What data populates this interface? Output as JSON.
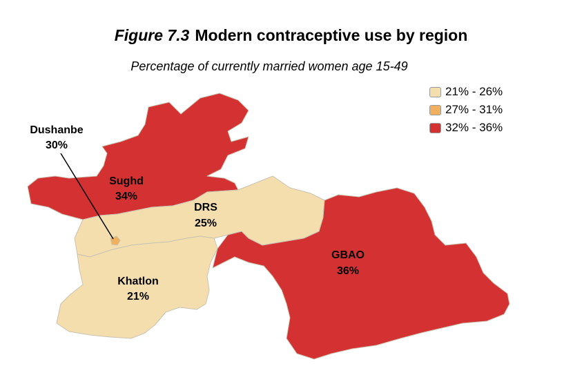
{
  "header": {
    "figure_number": "Figure 7.3",
    "title": "Modern contraceptive use by region",
    "subtitle": "Percentage of currently married women age 15-49"
  },
  "colors": {
    "low": "#f5deae",
    "mid": "#f0b060",
    "high": "#d43232"
  },
  "legend": [
    {
      "label": "21% - 26%",
      "color": "#f5deae"
    },
    {
      "label": "27% - 31%",
      "color": "#f0b060"
    },
    {
      "label": "32% - 36%",
      "color": "#d43232"
    }
  ],
  "regions": {
    "sughd": {
      "name": "Sughd",
      "value": "34%",
      "color": "#d43232"
    },
    "drs": {
      "name": "DRS",
      "value": "25%",
      "color": "#f5deae"
    },
    "khatlon": {
      "name": "Khatlon",
      "value": "21%",
      "color": "#f5deae"
    },
    "gbao": {
      "name": "GBAO",
      "value": "36%",
      "color": "#d43232"
    },
    "dushanbe": {
      "name": "Dushanbe",
      "value": "30%",
      "color": "#f0b060"
    }
  }
}
